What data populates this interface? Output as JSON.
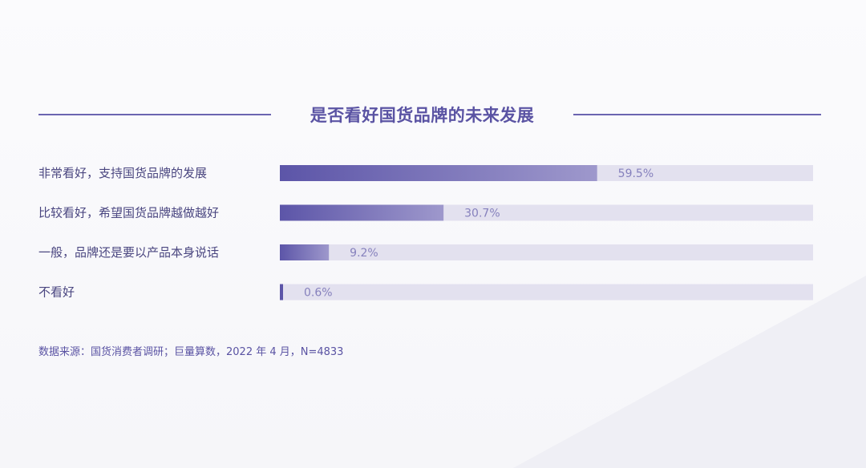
{
  "title": "是否看好国货品牌的未来发展",
  "source": "数据来源：国货消费者调研；巨量算数，2022 年 4 月，N=4833",
  "colors": {
    "bar_start": "#5c55a8",
    "bar_end": "#9e98cc",
    "track": "#e3e1ef",
    "label": "#4a4680",
    "value": "#8681bd",
    "accent": "#5a53a3"
  },
  "chart_data": {
    "type": "bar",
    "orientation": "horizontal",
    "title": "是否看好国货品牌的未来发展",
    "categories": [
      "非常看好，支持国货品牌的发展",
      "比较看好，希望国货品牌越做越好",
      "一般，品牌还是要以产品本身说话",
      "不看好"
    ],
    "values": [
      59.5,
      30.7,
      9.2,
      0.6
    ],
    "value_labels": [
      "59.5%",
      "30.7%",
      "9.2%",
      "0.6%"
    ],
    "unit": "%",
    "xlim": [
      0,
      100
    ],
    "grid": false,
    "legend": "none"
  }
}
